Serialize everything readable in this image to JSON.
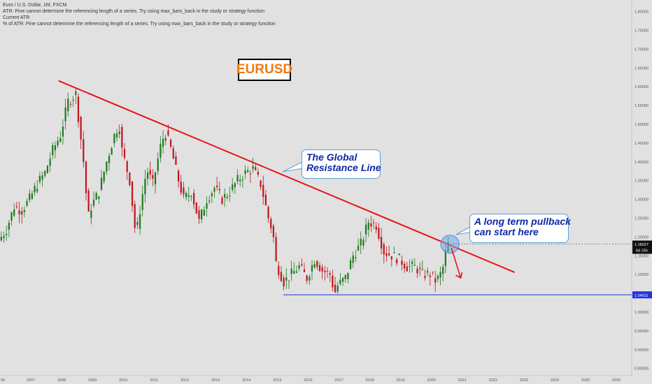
{
  "header": {
    "line1": "Euro / U.S. Dollar, 1M, FXCM",
    "line2": "ATR: Pine cannot determine the referencing length of a series. Try using max_bars_back in the study or strategy function",
    "line3": "Current ATR",
    "line4": "% of ATR: Pine cannot determine the referencing length of a series. Try using max_bars_back in the study or strategy function"
  },
  "tag": "EURUSD",
  "callouts": {
    "resistance": {
      "line1": "The Global",
      "line2": "Resistance Line"
    },
    "pullback": {
      "line1": "A long term pullback",
      "line2": "can start here"
    }
  },
  "price_axis": {
    "ticks": [
      "1.80000",
      "1.75000",
      "1.70000",
      "1.65000",
      "1.60000",
      "1.55000",
      "1.50000",
      "1.45000",
      "1.40000",
      "1.35000",
      "1.30000",
      "1.25000",
      "1.20000",
      "1.15000",
      "1.10000",
      "1.05000",
      "1.00000",
      "0.95000",
      "0.90000",
      "0.85000"
    ],
    "current_price": "1.18027",
    "countdown": "6d 15h",
    "support_price": "1.04511"
  },
  "time_axis": {
    "ticks": [
      "06",
      "2007",
      "2008",
      "2009",
      "2010",
      "2011",
      "2012",
      "2013",
      "2014",
      "2015",
      "2016",
      "2017",
      "2018",
      "2019",
      "2020",
      "2021",
      "2022",
      "2023",
      "2024",
      "2025",
      "2026"
    ]
  },
  "colors": {
    "background": "#e1e1e1",
    "up_candle": "#1e7a1e",
    "down_candle": "#c0141a",
    "trendline": "#e8141a",
    "support_line": "#2233dd",
    "tag_text": "#ef7b13",
    "callout_text": "#0e2aa7",
    "callout_border": "#5aa0d8"
  },
  "chart_data": {
    "type": "candlestick",
    "symbol": "EURUSD",
    "timeframe": "1M",
    "ylim": [
      0.83,
      1.83
    ],
    "xlim": [
      2006.0,
      2026.5
    ],
    "series": [
      {
        "points": [
          [
            2006.0,
            1.19
          ],
          [
            2006.25,
            1.22
          ],
          [
            2006.5,
            1.28
          ],
          [
            2006.75,
            1.27
          ],
          [
            2007.0,
            1.3
          ],
          [
            2007.25,
            1.34
          ],
          [
            2007.5,
            1.37
          ],
          [
            2007.75,
            1.43
          ],
          [
            2008.0,
            1.47
          ],
          [
            2008.25,
            1.56
          ],
          [
            2008.5,
            1.58
          ],
          [
            2008.75,
            1.4
          ],
          [
            2008.9,
            1.25
          ],
          [
            2009.0,
            1.28
          ],
          [
            2009.25,
            1.32
          ],
          [
            2009.5,
            1.4
          ],
          [
            2009.75,
            1.47
          ],
          [
            2009.9,
            1.5
          ],
          [
            2010.0,
            1.43
          ],
          [
            2010.25,
            1.35
          ],
          [
            2010.45,
            1.2
          ],
          [
            2010.6,
            1.28
          ],
          [
            2010.8,
            1.38
          ],
          [
            2011.0,
            1.34
          ],
          [
            2011.25,
            1.44
          ],
          [
            2011.4,
            1.48
          ],
          [
            2011.6,
            1.43
          ],
          [
            2011.8,
            1.36
          ],
          [
            2012.0,
            1.3
          ],
          [
            2012.25,
            1.32
          ],
          [
            2012.5,
            1.24
          ],
          [
            2012.75,
            1.3
          ],
          [
            2013.0,
            1.33
          ],
          [
            2013.25,
            1.3
          ],
          [
            2013.5,
            1.32
          ],
          [
            2013.75,
            1.35
          ],
          [
            2014.0,
            1.37
          ],
          [
            2014.25,
            1.38
          ],
          [
            2014.5,
            1.34
          ],
          [
            2014.75,
            1.25
          ],
          [
            2014.9,
            1.21
          ],
          [
            2015.0,
            1.13
          ],
          [
            2015.25,
            1.08
          ],
          [
            2015.5,
            1.1
          ],
          [
            2015.75,
            1.12
          ],
          [
            2016.0,
            1.09
          ],
          [
            2016.25,
            1.14
          ],
          [
            2016.5,
            1.11
          ],
          [
            2016.75,
            1.1
          ],
          [
            2016.9,
            1.05
          ],
          [
            2017.0,
            1.07
          ],
          [
            2017.25,
            1.09
          ],
          [
            2017.5,
            1.15
          ],
          [
            2017.75,
            1.18
          ],
          [
            2018.0,
            1.24
          ],
          [
            2018.25,
            1.23
          ],
          [
            2018.5,
            1.16
          ],
          [
            2018.75,
            1.15
          ],
          [
            2019.0,
            1.14
          ],
          [
            2019.25,
            1.12
          ],
          [
            2019.5,
            1.12
          ],
          [
            2019.75,
            1.1
          ],
          [
            2020.0,
            1.1
          ],
          [
            2020.2,
            1.08
          ],
          [
            2020.4,
            1.11
          ],
          [
            2020.55,
            1.18
          ]
        ]
      }
    ],
    "trendline": {
      "from": [
        2007.9,
        1.615
      ],
      "to": [
        2022.7,
        1.105
      ],
      "label": "The Global Resistance Line"
    },
    "support_line": {
      "from": [
        2015.2,
        1.04511
      ],
      "to": [
        2026.5,
        1.04511
      ],
      "value": 1.04511
    },
    "highlight": {
      "x": 2020.6,
      "y": 1.18
    },
    "projection_arrow": {
      "from": [
        2020.65,
        1.17
      ],
      "to": [
        2020.95,
        1.09
      ]
    },
    "annotations": [
      "The Global Resistance Line",
      "A long term pullback can start here"
    ]
  }
}
